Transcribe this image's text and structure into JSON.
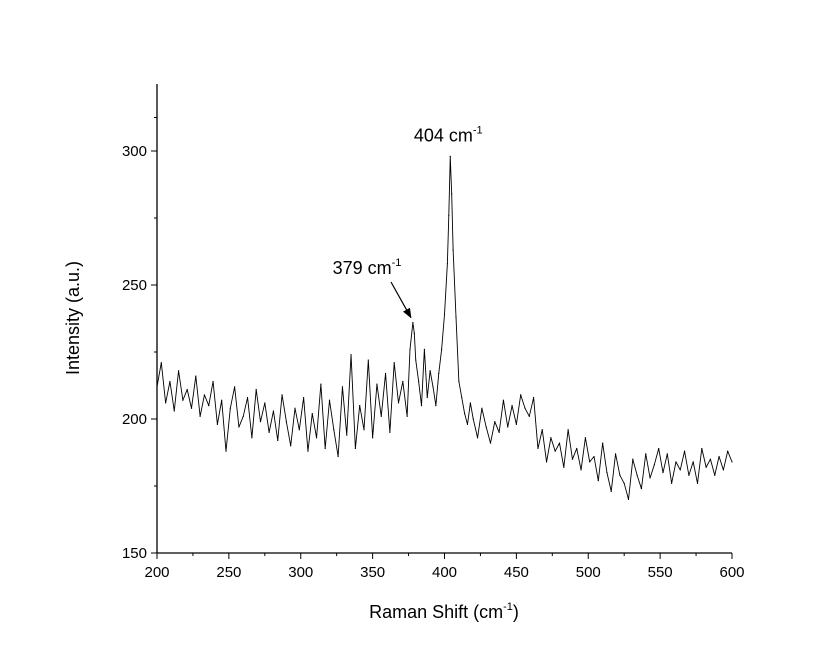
{
  "chart_data": {
    "type": "line",
    "title": "",
    "xlabel": {
      "main": "Raman Shift (cm",
      "sup": "-1",
      "tail": ")"
    },
    "ylabel": "Intensity (a.u.)",
    "xlim": [
      200,
      600
    ],
    "ylim": [
      150,
      325
    ],
    "x_ticks": [
      200,
      250,
      300,
      350,
      400,
      450,
      500,
      550,
      600
    ],
    "y_ticks": [
      150,
      200,
      250,
      300
    ],
    "grid": false,
    "legend": "none",
    "line_color": "#000000",
    "annotations": [
      {
        "id": "peak-404",
        "value_text": "404 cm",
        "sup": "-1",
        "x": 404,
        "y": 298,
        "arrow": false
      },
      {
        "id": "peak-379",
        "value_text": "379 cm",
        "sup": "-1",
        "x": 378,
        "y": 236,
        "arrow": true
      }
    ],
    "series": [
      {
        "x": [
          200,
          203,
          206,
          209,
          212,
          215,
          218,
          221,
          224,
          227,
          230,
          233,
          236,
          239,
          242,
          245,
          248,
          251,
          254,
          257,
          260,
          263,
          266,
          269,
          272,
          275,
          278,
          281,
          284,
          287,
          290,
          293,
          296,
          299,
          302,
          305,
          308,
          311,
          314,
          317,
          320,
          323,
          326,
          329,
          332,
          335,
          338,
          341,
          344,
          347,
          350,
          353,
          356,
          359,
          362,
          365,
          368,
          371,
          374,
          376,
          378,
          379,
          380,
          382,
          384,
          386,
          388,
          390,
          392,
          394,
          396,
          398,
          400,
          402,
          403,
          404,
          405,
          406,
          408,
          410,
          412,
          414,
          416,
          418,
          420,
          423,
          426,
          429,
          432,
          435,
          438,
          441,
          444,
          447,
          450,
          453,
          456,
          459,
          462,
          465,
          468,
          471,
          474,
          477,
          480,
          483,
          486,
          489,
          492,
          495,
          498,
          501,
          504,
          507,
          510,
          513,
          516,
          519,
          522,
          525,
          528,
          531,
          534,
          537,
          540,
          543,
          546,
          549,
          552,
          555,
          558,
          561,
          564,
          567,
          570,
          573,
          576,
          579,
          582,
          585,
          588,
          591,
          594,
          597,
          600
        ],
        "y": [
          212,
          221,
          206,
          214,
          203,
          218,
          207,
          211,
          204,
          216,
          201,
          209,
          205,
          214,
          198,
          207,
          188,
          204,
          212,
          197,
          201,
          208,
          193,
          211,
          199,
          206,
          195,
          203,
          192,
          209,
          199,
          190,
          204,
          196,
          208,
          188,
          202,
          193,
          213,
          189,
          207,
          196,
          186,
          212,
          194,
          224,
          189,
          205,
          196,
          222,
          193,
          213,
          201,
          217,
          195,
          221,
          206,
          214,
          201,
          226,
          236,
          232,
          222,
          214,
          205,
          226,
          208,
          218,
          212,
          205,
          217,
          226,
          239,
          258,
          276,
          298,
          284,
          263,
          238,
          214,
          208,
          202,
          198,
          206,
          200,
          193,
          204,
          197,
          191,
          199,
          195,
          207,
          197,
          205,
          198,
          209,
          204,
          201,
          208,
          189,
          196,
          184,
          193,
          188,
          191,
          182,
          196,
          185,
          189,
          181,
          193,
          184,
          186,
          177,
          191,
          180,
          173,
          187,
          179,
          176,
          170,
          185,
          179,
          174,
          187,
          178,
          183,
          189,
          180,
          187,
          176,
          184,
          181,
          188,
          179,
          184,
          176,
          189,
          182,
          185,
          179,
          186,
          181,
          188,
          184
        ]
      }
    ]
  }
}
